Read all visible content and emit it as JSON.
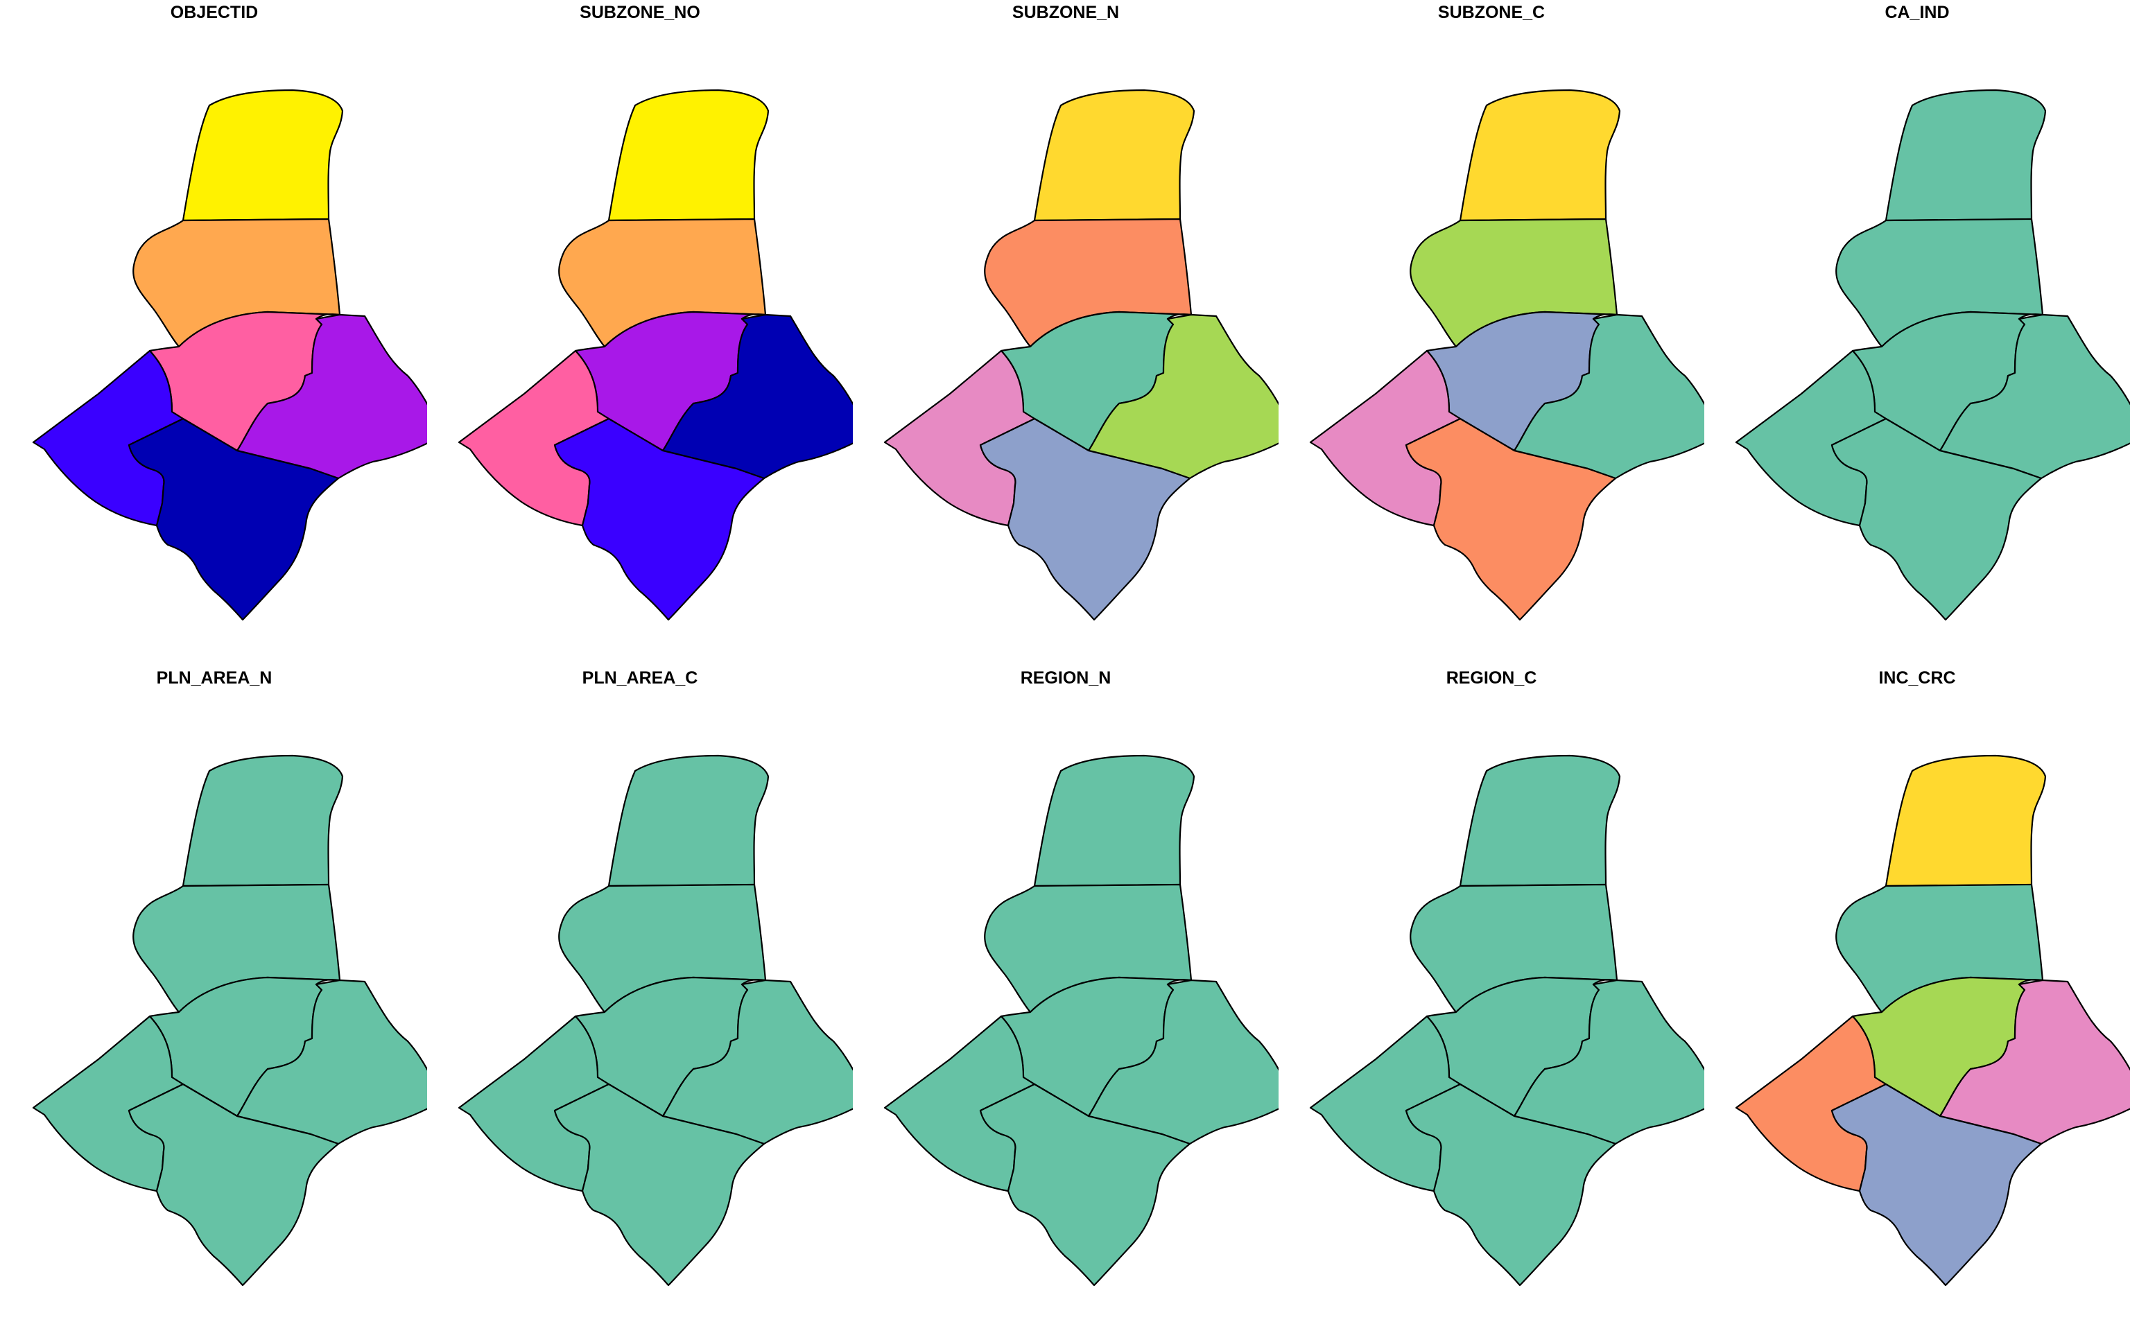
{
  "figure": {
    "panels": [
      {
        "title": "OBJECTID",
        "fills": {
          "north": "#FFF200",
          "upper_mid": "#FFA84F",
          "center": "#FF5FA2",
          "east": "#A818E8",
          "west": "#3A00FF",
          "south": "#0000B3"
        }
      },
      {
        "title": "SUBZONE_NO",
        "fills": {
          "north": "#FFF200",
          "upper_mid": "#FFA84F",
          "center": "#A818E8",
          "east": "#0000B3",
          "west": "#FF5FA2",
          "south": "#3A00FF"
        }
      },
      {
        "title": "SUBZONE_N",
        "fills": {
          "north": "#FFD92F",
          "upper_mid": "#FC8D62",
          "center": "#66C2A5",
          "east": "#A6D854",
          "west": "#E78AC3",
          "south": "#8DA0CB"
        }
      },
      {
        "title": "SUBZONE_C",
        "fills": {
          "north": "#FFD92F",
          "upper_mid": "#A6D854",
          "center": "#8DA0CB",
          "east": "#66C2A5",
          "west": "#E78AC3",
          "south": "#FC8D62"
        }
      },
      {
        "title": "CA_IND",
        "fills": {
          "north": "#66C2A5",
          "upper_mid": "#66C2A5",
          "center": "#66C2A5",
          "east": "#66C2A5",
          "west": "#66C2A5",
          "south": "#66C2A5"
        }
      },
      {
        "title": "PLN_AREA_N",
        "fills": {
          "north": "#66C2A5",
          "upper_mid": "#66C2A5",
          "center": "#66C2A5",
          "east": "#66C2A5",
          "west": "#66C2A5",
          "south": "#66C2A5"
        }
      },
      {
        "title": "PLN_AREA_C",
        "fills": {
          "north": "#66C2A5",
          "upper_mid": "#66C2A5",
          "center": "#66C2A5",
          "east": "#66C2A5",
          "west": "#66C2A5",
          "south": "#66C2A5"
        }
      },
      {
        "title": "REGION_N",
        "fills": {
          "north": "#66C2A5",
          "upper_mid": "#66C2A5",
          "center": "#66C2A5",
          "east": "#66C2A5",
          "west": "#66C2A5",
          "south": "#66C2A5"
        }
      },
      {
        "title": "REGION_C",
        "fills": {
          "north": "#66C2A5",
          "upper_mid": "#66C2A5",
          "center": "#66C2A5",
          "east": "#66C2A5",
          "west": "#66C2A5",
          "south": "#66C2A5"
        }
      },
      {
        "title": "INC_CRC",
        "fills": {
          "north": "#FFD92F",
          "upper_mid": "#66C2A5",
          "center": "#A6D854",
          "east": "#E78AC3",
          "west": "#FC8D62",
          "south": "#8DA0CB"
        }
      }
    ]
  }
}
